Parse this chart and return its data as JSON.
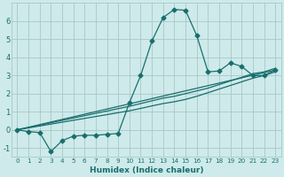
{
  "xlabel": "Humidex (Indice chaleur)",
  "bg_color": "#ceeaea",
  "grid_color": "#a8c8c8",
  "line_color": "#1a6e6e",
  "xlim": [
    -0.5,
    23.5
  ],
  "ylim": [
    -1.5,
    7.0
  ],
  "xticks": [
    0,
    1,
    2,
    3,
    4,
    5,
    6,
    7,
    8,
    9,
    10,
    11,
    12,
    13,
    14,
    15,
    16,
    17,
    18,
    19,
    20,
    21,
    22,
    23
  ],
  "yticks": [
    -1,
    0,
    1,
    2,
    3,
    4,
    5,
    6
  ],
  "line1_x": [
    0,
    1,
    2,
    3,
    4,
    5,
    6,
    7,
    8,
    9,
    10,
    11,
    12,
    13,
    14,
    15,
    16,
    17,
    18,
    19,
    20,
    21,
    22,
    23
  ],
  "line1_y": [
    0.0,
    -0.1,
    -0.15,
    -1.2,
    -0.6,
    -0.35,
    -0.3,
    -0.3,
    -0.25,
    -0.2,
    1.5,
    3.0,
    4.9,
    6.2,
    6.65,
    6.6,
    5.2,
    3.2,
    3.25,
    3.7,
    3.5,
    3.0,
    3.0,
    3.3
  ],
  "line2_x": [
    0,
    23
  ],
  "line2_y": [
    0.0,
    3.3
  ],
  "line3_x": [
    0,
    10,
    11,
    12,
    13,
    14,
    15,
    16,
    17,
    18,
    19,
    20,
    21,
    22,
    23
  ],
  "line3_y": [
    0.0,
    1.3,
    1.45,
    1.6,
    1.75,
    1.85,
    2.0,
    2.15,
    2.3,
    2.5,
    2.7,
    2.9,
    3.1,
    3.2,
    3.4
  ],
  "line4_x": [
    0,
    10,
    11,
    12,
    13,
    14,
    15,
    16,
    17,
    18,
    19,
    20,
    21,
    22,
    23
  ],
  "line4_y": [
    0.0,
    1.05,
    1.18,
    1.32,
    1.45,
    1.55,
    1.68,
    1.85,
    2.05,
    2.25,
    2.45,
    2.65,
    2.85,
    3.0,
    3.2
  ]
}
